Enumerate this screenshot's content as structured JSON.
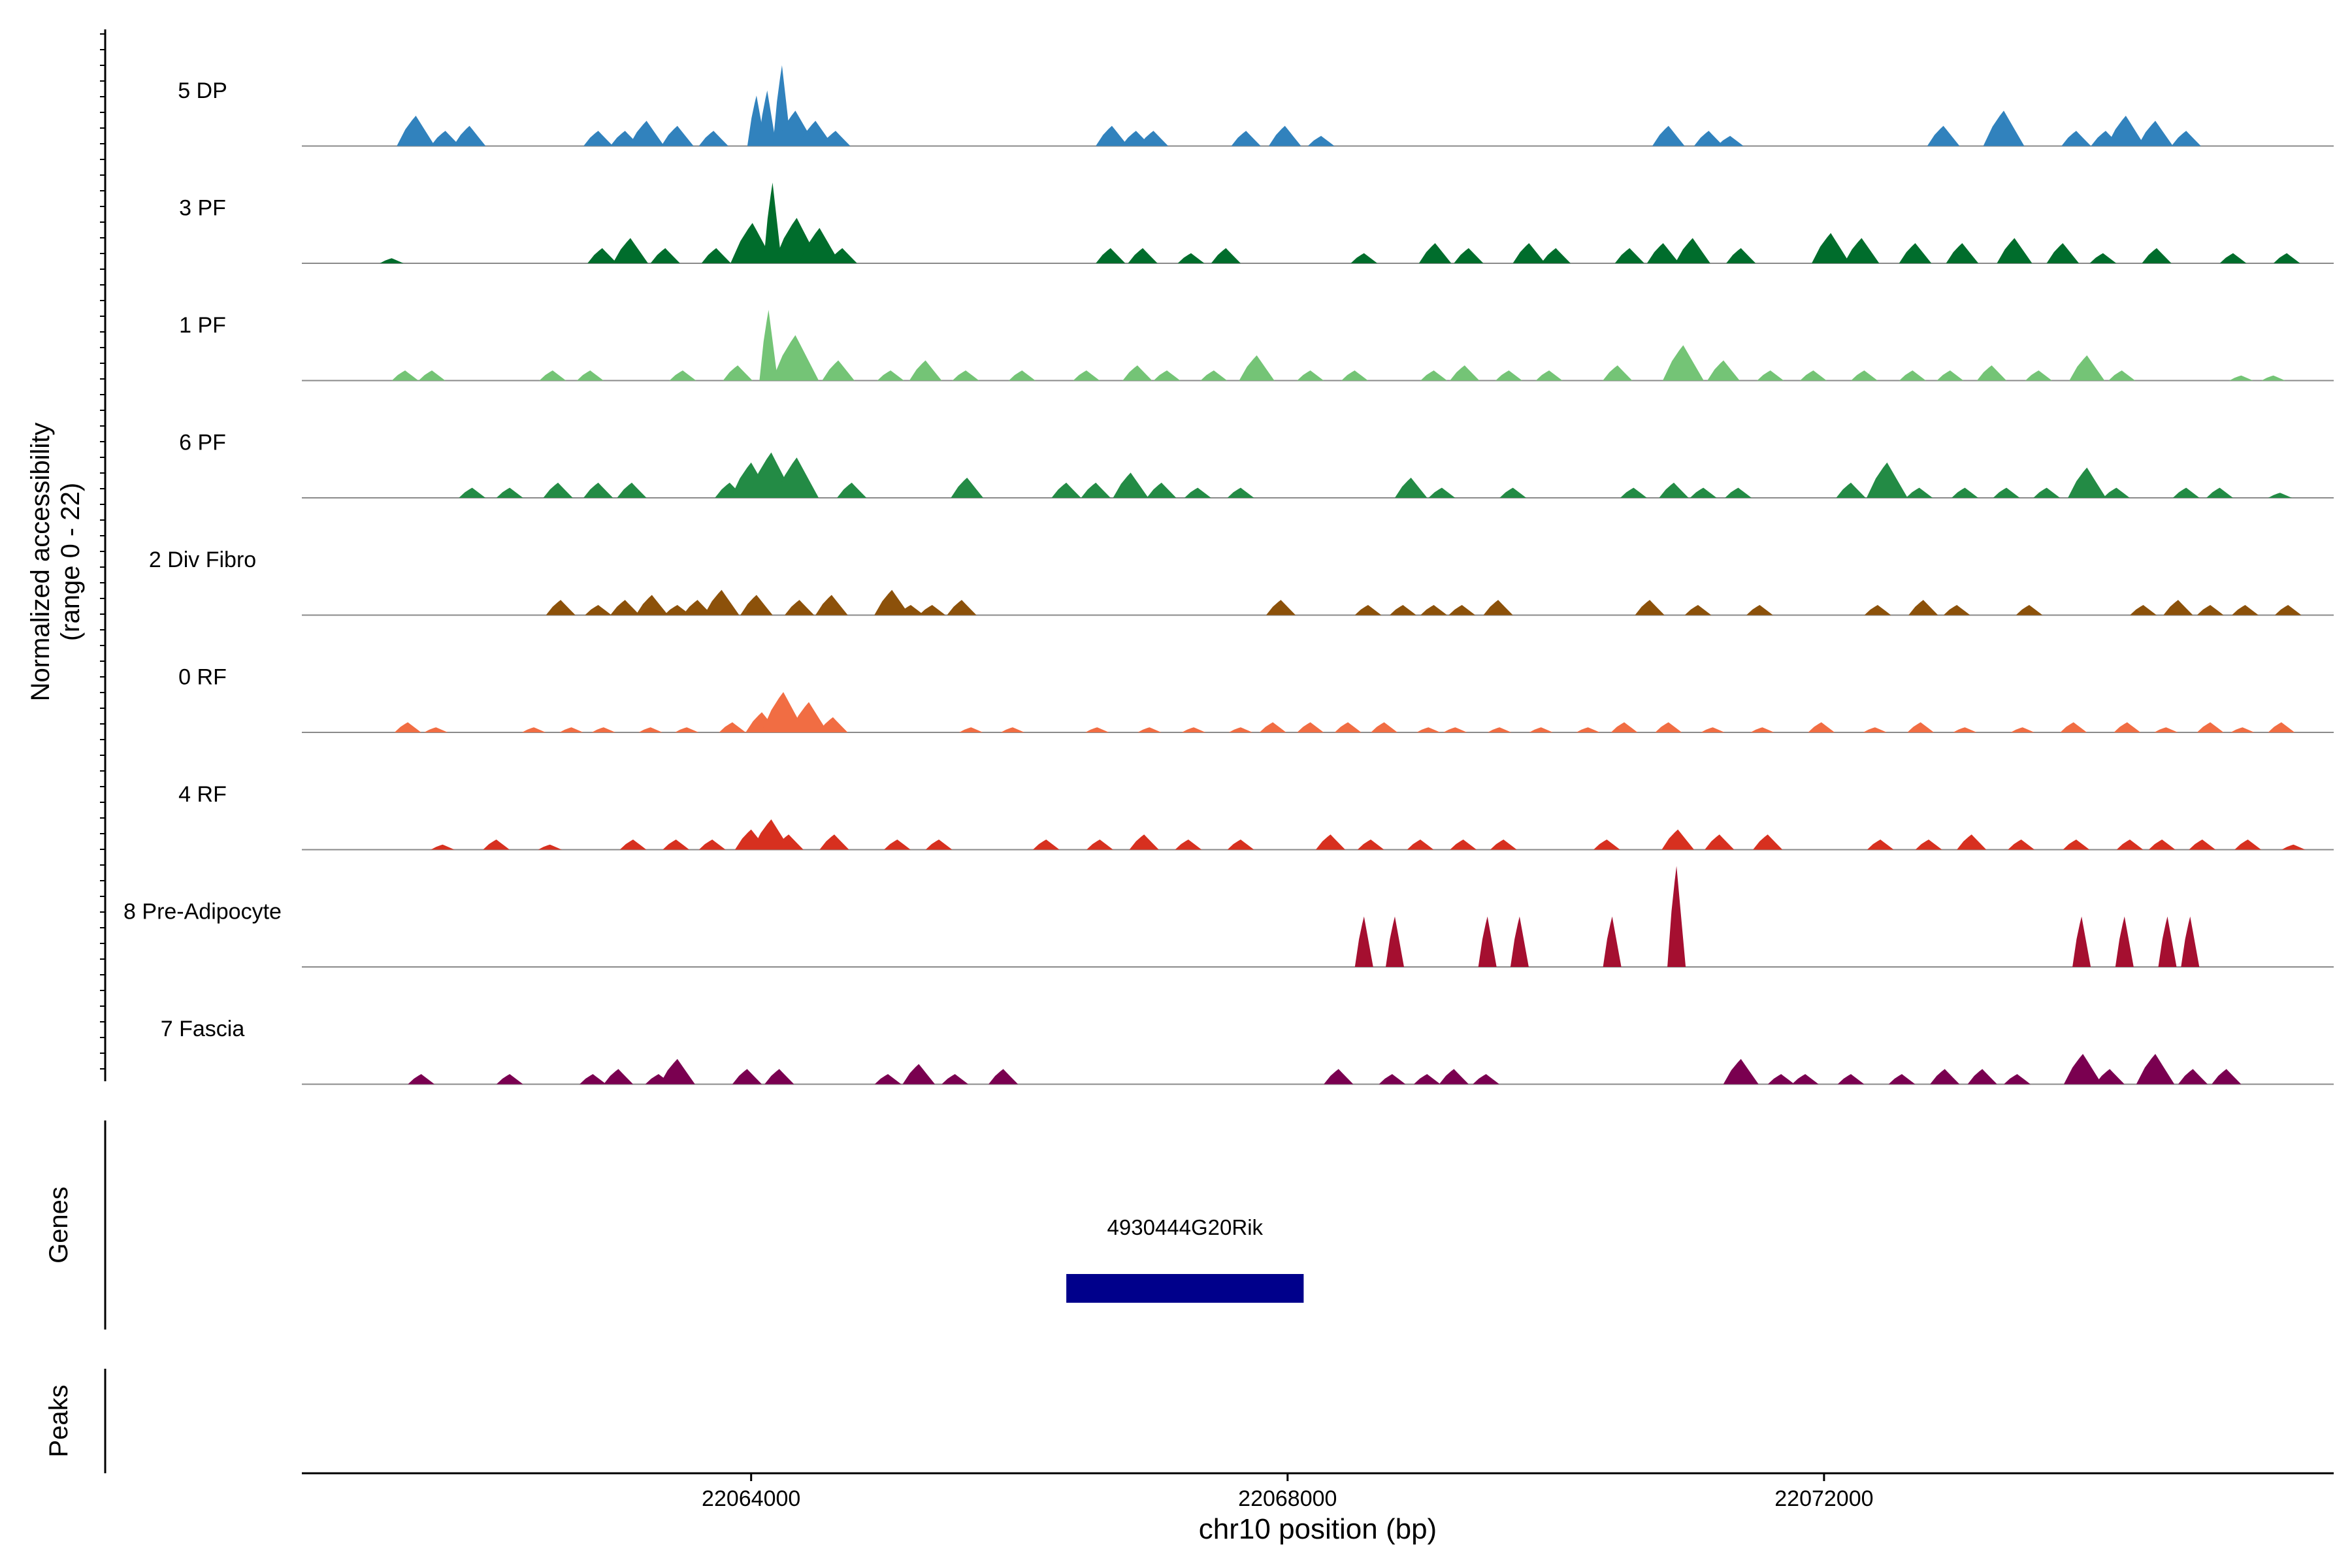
{
  "chart_data": {
    "type": "area",
    "title": "",
    "ylabel_line1": "Normalized accessibility",
    "ylabel_line2": "(range 0 - 22)",
    "yrange": [
      0,
      22
    ],
    "xlabel": "chr10 position (bp)",
    "xlim": [
      22060650,
      22075800
    ],
    "x_ticks": [
      22064000,
      22068000,
      22072000
    ],
    "x_tick_labels": [
      "22064000",
      "22068000",
      "22072000"
    ],
    "tracks": [
      {
        "name": "5 DP",
        "color": "#3182bd",
        "peaks": [
          [
            22061500,
            6
          ],
          [
            22061720,
            3
          ],
          [
            22061900,
            4
          ],
          [
            22062860,
            3
          ],
          [
            22063060,
            3
          ],
          [
            22063220,
            5
          ],
          [
            22063450,
            4
          ],
          [
            22063720,
            3
          ],
          [
            22064040,
            10
          ],
          [
            22064120,
            11
          ],
          [
            22064230,
            16
          ],
          [
            22064330,
            7
          ],
          [
            22064480,
            5
          ],
          [
            22064630,
            3
          ],
          [
            22066690,
            4
          ],
          [
            22066870,
            3
          ],
          [
            22067000,
            3
          ],
          [
            22067690,
            3
          ],
          [
            22067980,
            4
          ],
          [
            22068250,
            2
          ],
          [
            22070840,
            4
          ],
          [
            22071140,
            3
          ],
          [
            22071300,
            2
          ],
          [
            22072890,
            4
          ],
          [
            22073340,
            7
          ],
          [
            22073880,
            3
          ],
          [
            22074100,
            3
          ],
          [
            22074250,
            6
          ],
          [
            22074470,
            5
          ],
          [
            22074700,
            3
          ]
        ]
      },
      {
        "name": "3 PF",
        "color": "#006d2c",
        "peaks": [
          [
            22061320,
            1
          ],
          [
            22062890,
            3
          ],
          [
            22063100,
            5
          ],
          [
            22063360,
            3
          ],
          [
            22063740,
            3
          ],
          [
            22064010,
            8
          ],
          [
            22064160,
            16
          ],
          [
            22064340,
            9
          ],
          [
            22064510,
            7
          ],
          [
            22064680,
            3
          ],
          [
            22066680,
            3
          ],
          [
            22066920,
            3
          ],
          [
            22067280,
            2
          ],
          [
            22067540,
            3
          ],
          [
            22068570,
            2
          ],
          [
            22069100,
            4
          ],
          [
            22069350,
            3
          ],
          [
            22069800,
            4
          ],
          [
            22070000,
            3
          ],
          [
            22070550,
            3
          ],
          [
            22070800,
            4
          ],
          [
            22071020,
            5
          ],
          [
            22071380,
            3
          ],
          [
            22072050,
            6
          ],
          [
            22072280,
            5
          ],
          [
            22072680,
            4
          ],
          [
            22073030,
            4
          ],
          [
            22073420,
            5
          ],
          [
            22073780,
            4
          ],
          [
            22074080,
            2
          ],
          [
            22074480,
            3
          ],
          [
            22075050,
            2
          ],
          [
            22075450,
            2
          ]
        ]
      },
      {
        "name": "1 PF",
        "color": "#74c476",
        "peaks": [
          [
            22061420,
            2
          ],
          [
            22061620,
            2
          ],
          [
            22062520,
            2
          ],
          [
            22062800,
            2
          ],
          [
            22063490,
            2
          ],
          [
            22063900,
            3
          ],
          [
            22064130,
            14
          ],
          [
            22064330,
            9
          ],
          [
            22064650,
            4
          ],
          [
            22065040,
            2
          ],
          [
            22065300,
            4
          ],
          [
            22065600,
            2
          ],
          [
            22066020,
            2
          ],
          [
            22066500,
            2
          ],
          [
            22066880,
            3
          ],
          [
            22067100,
            2
          ],
          [
            22067450,
            2
          ],
          [
            22067770,
            5
          ],
          [
            22068170,
            2
          ],
          [
            22068500,
            2
          ],
          [
            22069090,
            2
          ],
          [
            22069320,
            3
          ],
          [
            22069650,
            2
          ],
          [
            22069950,
            2
          ],
          [
            22070460,
            3
          ],
          [
            22070950,
            7
          ],
          [
            22071250,
            4
          ],
          [
            22071600,
            2
          ],
          [
            22071920,
            2
          ],
          [
            22072300,
            2
          ],
          [
            22072660,
            2
          ],
          [
            22072940,
            2
          ],
          [
            22073250,
            3
          ],
          [
            22073600,
            2
          ],
          [
            22073960,
            5
          ],
          [
            22074220,
            2
          ],
          [
            22075110,
            1
          ],
          [
            22075350,
            1
          ]
        ]
      },
      {
        "name": "6 PF",
        "color": "#238b45",
        "peaks": [
          [
            22061920,
            2
          ],
          [
            22062200,
            2
          ],
          [
            22062560,
            3
          ],
          [
            22062860,
            3
          ],
          [
            22063110,
            3
          ],
          [
            22063840,
            3
          ],
          [
            22064000,
            7
          ],
          [
            22064150,
            9
          ],
          [
            22064340,
            8
          ],
          [
            22064750,
            3
          ],
          [
            22065610,
            4
          ],
          [
            22066350,
            3
          ],
          [
            22066570,
            3
          ],
          [
            22066830,
            5
          ],
          [
            22067060,
            3
          ],
          [
            22067330,
            2
          ],
          [
            22067650,
            2
          ],
          [
            22068920,
            4
          ],
          [
            22069150,
            2
          ],
          [
            22069680,
            2
          ],
          [
            22070580,
            2
          ],
          [
            22070880,
            3
          ],
          [
            22071100,
            2
          ],
          [
            22071360,
            2
          ],
          [
            22072200,
            3
          ],
          [
            22072470,
            7
          ],
          [
            22072710,
            2
          ],
          [
            22073050,
            2
          ],
          [
            22073360,
            2
          ],
          [
            22073660,
            2
          ],
          [
            22073960,
            6
          ],
          [
            22074180,
            2
          ],
          [
            22074700,
            2
          ],
          [
            22074950,
            2
          ],
          [
            22075400,
            1
          ]
        ]
      },
      {
        "name": "2 Div Fibro",
        "color": "#8c510a",
        "peaks": [
          [
            22062580,
            3
          ],
          [
            22062860,
            2
          ],
          [
            22063060,
            3
          ],
          [
            22063260,
            4
          ],
          [
            22063450,
            2
          ],
          [
            22063600,
            3
          ],
          [
            22063780,
            5
          ],
          [
            22064040,
            4
          ],
          [
            22064360,
            3
          ],
          [
            22064600,
            4
          ],
          [
            22065050,
            5
          ],
          [
            22065190,
            2
          ],
          [
            22065350,
            2
          ],
          [
            22065570,
            3
          ],
          [
            22067950,
            3
          ],
          [
            22068600,
            2
          ],
          [
            22068860,
            2
          ],
          [
            22069090,
            2
          ],
          [
            22069300,
            2
          ],
          [
            22069570,
            3
          ],
          [
            22070700,
            3
          ],
          [
            22071060,
            2
          ],
          [
            22071520,
            2
          ],
          [
            22072400,
            2
          ],
          [
            22072740,
            3
          ],
          [
            22072990,
            2
          ],
          [
            22073530,
            2
          ],
          [
            22074380,
            2
          ],
          [
            22074640,
            3
          ],
          [
            22074880,
            2
          ],
          [
            22075140,
            2
          ],
          [
            22075460,
            2
          ]
        ]
      },
      {
        "name": "0 RF",
        "color": "#f16d43",
        "peaks": [
          [
            22061440,
            2
          ],
          [
            22061650,
            1
          ],
          [
            22062380,
            1
          ],
          [
            22062660,
            1
          ],
          [
            22062900,
            1
          ],
          [
            22063250,
            1
          ],
          [
            22063520,
            1
          ],
          [
            22063860,
            2
          ],
          [
            22064080,
            4
          ],
          [
            22064240,
            8
          ],
          [
            22064430,
            6
          ],
          [
            22064610,
            3
          ],
          [
            22065640,
            1
          ],
          [
            22065950,
            1
          ],
          [
            22066580,
            1
          ],
          [
            22066970,
            1
          ],
          [
            22067300,
            1
          ],
          [
            22067650,
            1
          ],
          [
            22067890,
            2
          ],
          [
            22068170,
            2
          ],
          [
            22068450,
            2
          ],
          [
            22068720,
            2
          ],
          [
            22069050,
            1
          ],
          [
            22069250,
            1
          ],
          [
            22069580,
            1
          ],
          [
            22069890,
            1
          ],
          [
            22070240,
            1
          ],
          [
            22070510,
            2
          ],
          [
            22070840,
            2
          ],
          [
            22071170,
            1
          ],
          [
            22071540,
            1
          ],
          [
            22071980,
            2
          ],
          [
            22072380,
            1
          ],
          [
            22072720,
            2
          ],
          [
            22073050,
            1
          ],
          [
            22073480,
            1
          ],
          [
            22073860,
            2
          ],
          [
            22074260,
            2
          ],
          [
            22074550,
            1
          ],
          [
            22074880,
            2
          ],
          [
            22075120,
            1
          ],
          [
            22075410,
            2
          ]
        ]
      },
      {
        "name": "4 RF",
        "color": "#d7301f",
        "peaks": [
          [
            22061700,
            1
          ],
          [
            22062100,
            2
          ],
          [
            22062500,
            1
          ],
          [
            22063120,
            2
          ],
          [
            22063440,
            2
          ],
          [
            22063710,
            2
          ],
          [
            22064000,
            4
          ],
          [
            22064150,
            6
          ],
          [
            22064280,
            3
          ],
          [
            22064620,
            3
          ],
          [
            22065090,
            2
          ],
          [
            22065400,
            2
          ],
          [
            22066200,
            2
          ],
          [
            22066600,
            2
          ],
          [
            22066930,
            3
          ],
          [
            22067260,
            2
          ],
          [
            22067650,
            2
          ],
          [
            22068320,
            3
          ],
          [
            22068620,
            2
          ],
          [
            22068990,
            2
          ],
          [
            22069310,
            2
          ],
          [
            22069610,
            2
          ],
          [
            22070380,
            2
          ],
          [
            22070910,
            4
          ],
          [
            22071220,
            3
          ],
          [
            22071580,
            3
          ],
          [
            22072420,
            2
          ],
          [
            22072780,
            2
          ],
          [
            22073100,
            3
          ],
          [
            22073470,
            2
          ],
          [
            22073880,
            2
          ],
          [
            22074280,
            2
          ],
          [
            22074520,
            2
          ],
          [
            22074820,
            2
          ],
          [
            22075160,
            2
          ],
          [
            22075500,
            1
          ]
        ]
      },
      {
        "name": "8 Pre-Adipocyte",
        "color": "#a50f30",
        "peaks": [
          [
            22068570,
            10
          ],
          [
            22068800,
            10
          ],
          [
            22069490,
            10
          ],
          [
            22069730,
            10
          ],
          [
            22070420,
            10
          ],
          [
            22070900,
            20
          ],
          [
            22073920,
            10
          ],
          [
            22074240,
            10
          ],
          [
            22074560,
            10
          ],
          [
            22074730,
            10
          ]
        ]
      },
      {
        "name": "7 Fascia",
        "color": "#7a0050",
        "peaks": [
          [
            22061540,
            2
          ],
          [
            22062200,
            2
          ],
          [
            22062820,
            2
          ],
          [
            22063010,
            3
          ],
          [
            22063310,
            2
          ],
          [
            22063450,
            5
          ],
          [
            22063970,
            3
          ],
          [
            22064210,
            3
          ],
          [
            22065020,
            2
          ],
          [
            22065250,
            4
          ],
          [
            22065520,
            2
          ],
          [
            22065880,
            3
          ],
          [
            22068380,
            3
          ],
          [
            22068780,
            2
          ],
          [
            22069040,
            2
          ],
          [
            22069240,
            3
          ],
          [
            22069480,
            2
          ],
          [
            22071380,
            5
          ],
          [
            22071680,
            2
          ],
          [
            22071860,
            2
          ],
          [
            22072200,
            2
          ],
          [
            22072580,
            2
          ],
          [
            22072900,
            3
          ],
          [
            22073180,
            3
          ],
          [
            22073440,
            2
          ],
          [
            22073930,
            6
          ],
          [
            22074130,
            3
          ],
          [
            22074470,
            6
          ],
          [
            22074750,
            3
          ],
          [
            22075000,
            3
          ]
        ]
      }
    ],
    "genes": {
      "label": "Genes",
      "items": [
        {
          "name": "4930444G20Rik",
          "start": 22066350,
          "end": 22068120,
          "color": "#00008b"
        }
      ]
    },
    "peaks_panel": {
      "label": "Peaks",
      "items": []
    }
  }
}
